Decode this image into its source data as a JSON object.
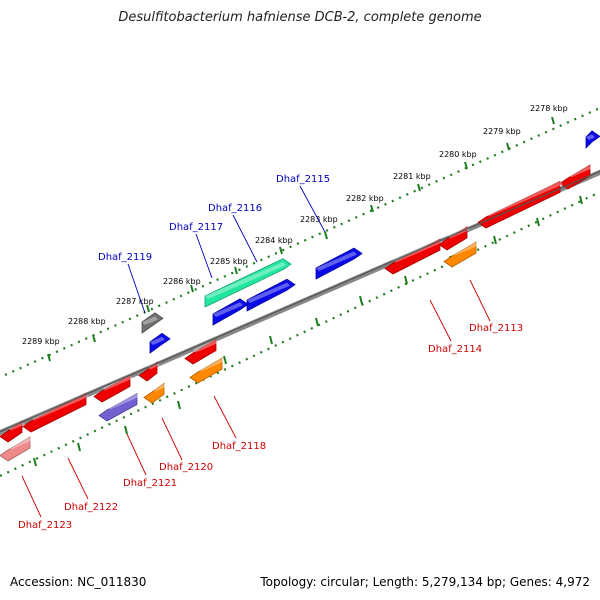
{
  "title": "Desulfitobacterium hafniense DCB-2, complete genome",
  "footer": {
    "accession": "Accession: NC_011830",
    "summary": "Topology: circular; Length: 5,279,134 bp; Genes: 4,972"
  },
  "colors": {
    "backbone": "#888888",
    "ruler": "#1e7d1e",
    "label_forward": "#0000bb",
    "label_reverse": "#cc0000",
    "blue": "#0a0ae6",
    "green": "#22e6a0",
    "gray": "#707070",
    "red": "#ee0000",
    "orange": "#ff8800",
    "purple": "#7060d0",
    "pink": "#f08a8a"
  },
  "ruler_ticks": [
    "2278 kbp",
    "2279 kbp",
    "2280 kbp",
    "2281 kbp",
    "2282 kbp",
    "2283 kbp",
    "2284 kbp",
    "2285 kbp",
    "2286 kbp",
    "2287 kbp",
    "2288 kbp",
    "2289 kbp"
  ],
  "forward_labels": [
    "Dhaf_2115",
    "Dhaf_2116",
    "Dhaf_2117",
    "Dhaf_2119"
  ],
  "reverse_labels": [
    "Dhaf_2113",
    "Dhaf_2114",
    "Dhaf_2118",
    "Dhaf_2120",
    "Dhaf_2121",
    "Dhaf_2122",
    "Dhaf_2123"
  ]
}
